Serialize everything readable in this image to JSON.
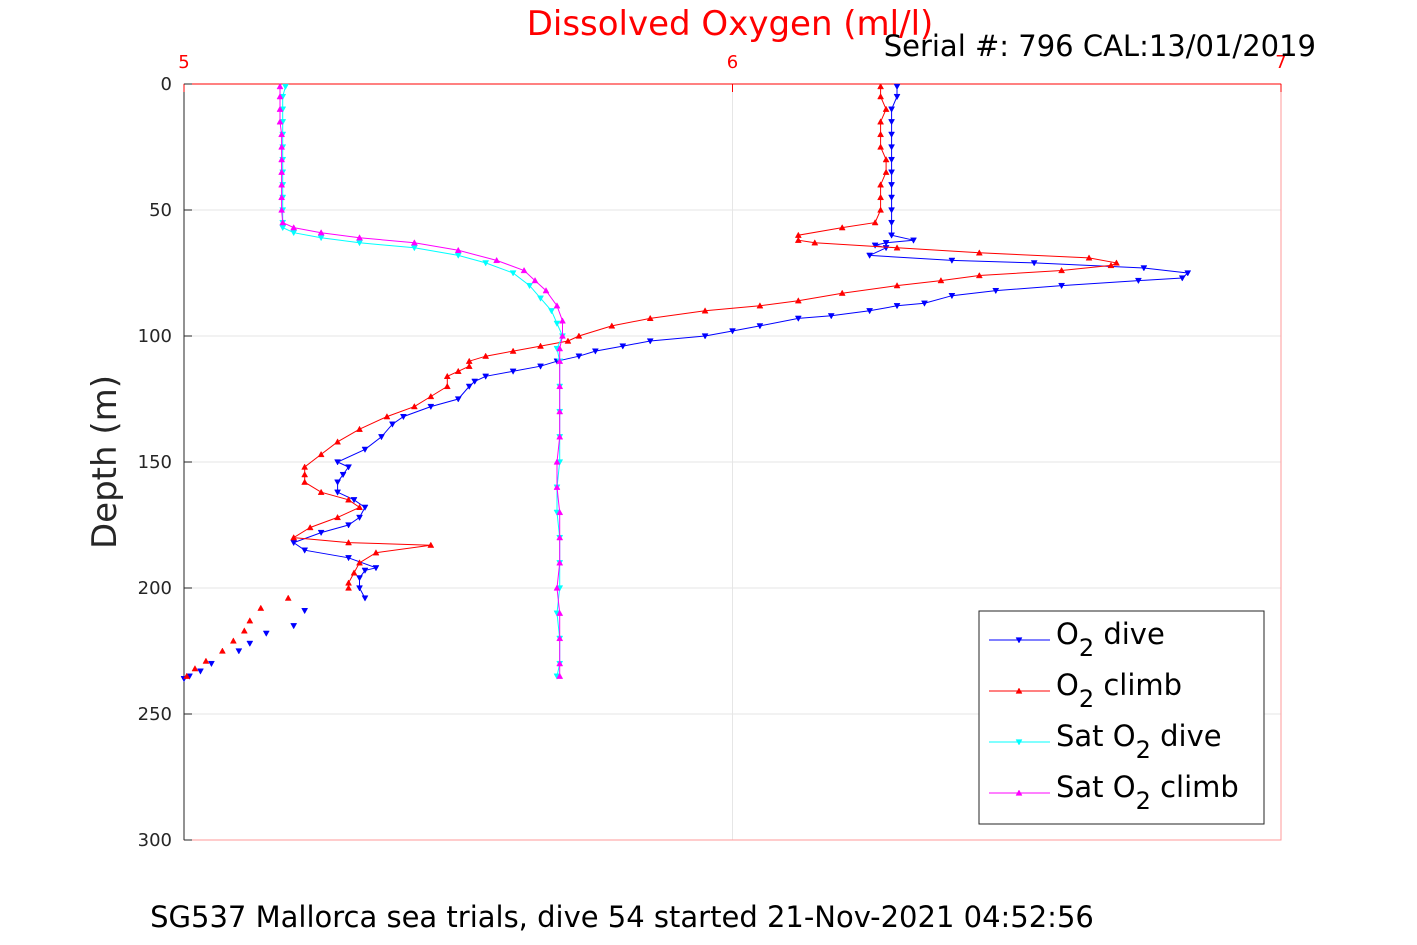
{
  "chart_data": {
    "type": "line",
    "title": "Dissolved Oxygen (ml/l)",
    "subtitle": "Serial #: 796  CAL:13/01/2019",
    "footer": "SG537 Mallorca sea trials, dive 54 started 21-Nov-2021 04:52:56",
    "ylabel": "Depth (m)",
    "xlabel": "",
    "xlim": [
      5,
      7
    ],
    "ylim": [
      0,
      300
    ],
    "y_reversed": true,
    "x_axis_position": "top",
    "x_ticks": [
      "5",
      "6",
      "7"
    ],
    "y_ticks": [
      "0",
      "50",
      "100",
      "150",
      "200",
      "250",
      "300"
    ],
    "grid": true,
    "legend_position": "bottom-right",
    "series": [
      {
        "name": "O2 dive",
        "legend_main": "O",
        "legend_sub": "2",
        "legend_rest": " dive",
        "color": "#0000ff",
        "marker": "triangle-down",
        "points": [
          [
            6.3,
            1
          ],
          [
            6.3,
            5
          ],
          [
            6.29,
            10
          ],
          [
            6.29,
            15
          ],
          [
            6.29,
            20
          ],
          [
            6.29,
            25
          ],
          [
            6.29,
            30
          ],
          [
            6.29,
            35
          ],
          [
            6.29,
            40
          ],
          [
            6.29,
            45
          ],
          [
            6.29,
            50
          ],
          [
            6.29,
            55
          ],
          [
            6.29,
            60
          ],
          [
            6.33,
            62
          ],
          [
            6.28,
            63
          ],
          [
            6.26,
            64
          ],
          [
            6.28,
            65
          ],
          [
            6.25,
            68
          ],
          [
            6.4,
            70
          ],
          [
            6.55,
            71
          ],
          [
            6.75,
            73
          ],
          [
            6.83,
            75
          ],
          [
            6.82,
            77
          ],
          [
            6.74,
            78
          ],
          [
            6.6,
            80
          ],
          [
            6.48,
            82
          ],
          [
            6.4,
            84
          ],
          [
            6.35,
            87
          ],
          [
            6.3,
            88
          ],
          [
            6.25,
            90
          ],
          [
            6.18,
            92
          ],
          [
            6.12,
            93
          ],
          [
            6.05,
            96
          ],
          [
            6.0,
            98
          ],
          [
            5.95,
            100
          ],
          [
            5.85,
            102
          ],
          [
            5.8,
            104
          ],
          [
            5.75,
            106
          ],
          [
            5.72,
            108
          ],
          [
            5.68,
            110
          ],
          [
            5.65,
            112
          ],
          [
            5.6,
            114
          ],
          [
            5.55,
            116
          ],
          [
            5.53,
            118
          ],
          [
            5.52,
            120
          ],
          [
            5.5,
            125
          ],
          [
            5.45,
            128
          ],
          [
            5.4,
            132
          ],
          [
            5.38,
            135
          ],
          [
            5.36,
            140
          ],
          [
            5.33,
            145
          ],
          [
            5.28,
            150
          ],
          [
            5.3,
            152
          ],
          [
            5.29,
            155
          ],
          [
            5.28,
            158
          ],
          [
            5.28,
            162
          ],
          [
            5.31,
            165
          ],
          [
            5.33,
            168
          ],
          [
            5.32,
            172
          ],
          [
            5.3,
            175
          ],
          [
            5.25,
            178
          ],
          [
            5.2,
            182
          ],
          [
            5.22,
            185
          ],
          [
            5.3,
            188
          ],
          [
            5.35,
            192
          ],
          [
            5.33,
            193
          ],
          [
            5.32,
            196
          ],
          [
            5.32,
            200
          ],
          [
            5.33,
            204
          ]
        ]
      },
      {
        "name": "O2 climb",
        "legend_main": "O",
        "legend_sub": "2",
        "legend_rest": " climb",
        "color": "#ff0000",
        "marker": "triangle-up",
        "points": [
          [
            6.27,
            1
          ],
          [
            6.27,
            5
          ],
          [
            6.28,
            10
          ],
          [
            6.27,
            15
          ],
          [
            6.27,
            20
          ],
          [
            6.27,
            25
          ],
          [
            6.28,
            30
          ],
          [
            6.28,
            35
          ],
          [
            6.27,
            40
          ],
          [
            6.27,
            45
          ],
          [
            6.27,
            50
          ],
          [
            6.26,
            55
          ],
          [
            6.2,
            57
          ],
          [
            6.12,
            60
          ],
          [
            6.12,
            62
          ],
          [
            6.15,
            63
          ],
          [
            6.3,
            65
          ],
          [
            6.45,
            67
          ],
          [
            6.65,
            69
          ],
          [
            6.7,
            71
          ],
          [
            6.69,
            72
          ],
          [
            6.6,
            74
          ],
          [
            6.45,
            76
          ],
          [
            6.38,
            78
          ],
          [
            6.3,
            80
          ],
          [
            6.2,
            83
          ],
          [
            6.12,
            86
          ],
          [
            6.05,
            88
          ],
          [
            5.95,
            90
          ],
          [
            5.85,
            93
          ],
          [
            5.78,
            96
          ],
          [
            5.72,
            100
          ],
          [
            5.7,
            102
          ],
          [
            5.65,
            104
          ],
          [
            5.6,
            106
          ],
          [
            5.55,
            108
          ],
          [
            5.52,
            110
          ],
          [
            5.52,
            112
          ],
          [
            5.5,
            114
          ],
          [
            5.48,
            116
          ],
          [
            5.48,
            120
          ],
          [
            5.45,
            124
          ],
          [
            5.42,
            128
          ],
          [
            5.37,
            132
          ],
          [
            5.32,
            137
          ],
          [
            5.28,
            142
          ],
          [
            5.25,
            147
          ],
          [
            5.22,
            152
          ],
          [
            5.22,
            155
          ],
          [
            5.22,
            158
          ],
          [
            5.25,
            162
          ],
          [
            5.3,
            165
          ],
          [
            5.32,
            168
          ],
          [
            5.28,
            172
          ],
          [
            5.23,
            176
          ],
          [
            5.2,
            180
          ],
          [
            5.3,
            182
          ],
          [
            5.45,
            183
          ],
          [
            5.35,
            186
          ],
          [
            5.32,
            190
          ],
          [
            5.31,
            194
          ],
          [
            5.3,
            198
          ],
          [
            5.3,
            200
          ]
        ]
      },
      {
        "name": "Sat O2 dive",
        "legend_main": "Sat O",
        "legend_sub": "2",
        "legend_rest": " dive",
        "color": "#00ffff",
        "marker": "triangle-down",
        "points": [
          [
            5.185,
            1
          ],
          [
            5.18,
            5
          ],
          [
            5.18,
            10
          ],
          [
            5.18,
            15
          ],
          [
            5.18,
            20
          ],
          [
            5.18,
            25
          ],
          [
            5.18,
            30
          ],
          [
            5.18,
            35
          ],
          [
            5.18,
            40
          ],
          [
            5.18,
            45
          ],
          [
            5.18,
            50
          ],
          [
            5.18,
            55
          ],
          [
            5.18,
            57
          ],
          [
            5.2,
            59
          ],
          [
            5.25,
            61
          ],
          [
            5.32,
            63
          ],
          [
            5.42,
            65
          ],
          [
            5.5,
            68
          ],
          [
            5.55,
            71
          ],
          [
            5.6,
            75
          ],
          [
            5.63,
            80
          ],
          [
            5.65,
            85
          ],
          [
            5.67,
            90
          ],
          [
            5.68,
            95
          ],
          [
            5.69,
            100
          ],
          [
            5.68,
            105
          ],
          [
            5.685,
            110
          ],
          [
            5.685,
            120
          ],
          [
            5.685,
            130
          ],
          [
            5.685,
            140
          ],
          [
            5.685,
            150
          ],
          [
            5.68,
            160
          ],
          [
            5.68,
            170
          ],
          [
            5.685,
            180
          ],
          [
            5.685,
            190
          ],
          [
            5.685,
            200
          ],
          [
            5.68,
            210
          ],
          [
            5.685,
            220
          ],
          [
            5.685,
            230
          ],
          [
            5.68,
            235
          ]
        ]
      },
      {
        "name": "Sat O2 climb",
        "legend_main": "Sat O",
        "legend_sub": "2",
        "legend_rest": " climb",
        "color": "#ff00ff",
        "marker": "triangle-up",
        "points": [
          [
            5.175,
            1
          ],
          [
            5.175,
            5
          ],
          [
            5.175,
            10
          ],
          [
            5.175,
            15
          ],
          [
            5.178,
            20
          ],
          [
            5.178,
            25
          ],
          [
            5.178,
            30
          ],
          [
            5.178,
            35
          ],
          [
            5.178,
            40
          ],
          [
            5.178,
            45
          ],
          [
            5.178,
            50
          ],
          [
            5.18,
            55
          ],
          [
            5.2,
            57
          ],
          [
            5.25,
            59
          ],
          [
            5.32,
            61
          ],
          [
            5.42,
            63
          ],
          [
            5.5,
            66
          ],
          [
            5.57,
            70
          ],
          [
            5.62,
            74
          ],
          [
            5.64,
            78
          ],
          [
            5.66,
            82
          ],
          [
            5.68,
            88
          ],
          [
            5.69,
            94
          ],
          [
            5.69,
            100
          ],
          [
            5.685,
            105
          ],
          [
            5.685,
            110
          ],
          [
            5.685,
            120
          ],
          [
            5.685,
            130
          ],
          [
            5.685,
            140
          ],
          [
            5.68,
            150
          ],
          [
            5.68,
            160
          ],
          [
            5.685,
            170
          ],
          [
            5.685,
            180
          ],
          [
            5.685,
            190
          ],
          [
            5.68,
            200
          ],
          [
            5.685,
            210
          ],
          [
            5.685,
            220
          ],
          [
            5.685,
            230
          ],
          [
            5.685,
            235
          ]
        ]
      },
      {
        "name": "",
        "color": "#0000ff",
        "marker": "triangle-down",
        "markers_only": true,
        "points": [
          [
            5.22,
            209
          ],
          [
            5.2,
            215
          ],
          [
            5.15,
            218
          ],
          [
            5.12,
            222
          ],
          [
            5.1,
            225
          ],
          [
            5.05,
            230
          ],
          [
            5.03,
            233
          ],
          [
            5.01,
            235
          ],
          [
            5.0,
            236
          ]
        ]
      },
      {
        "name": "",
        "color": "#ff0000",
        "marker": "triangle-up",
        "markers_only": true,
        "points": [
          [
            5.19,
            204
          ],
          [
            5.14,
            208
          ],
          [
            5.12,
            213
          ],
          [
            5.11,
            217
          ],
          [
            5.09,
            221
          ],
          [
            5.07,
            225
          ],
          [
            5.04,
            229
          ],
          [
            5.02,
            232
          ],
          [
            5.005,
            235
          ]
        ]
      }
    ]
  }
}
